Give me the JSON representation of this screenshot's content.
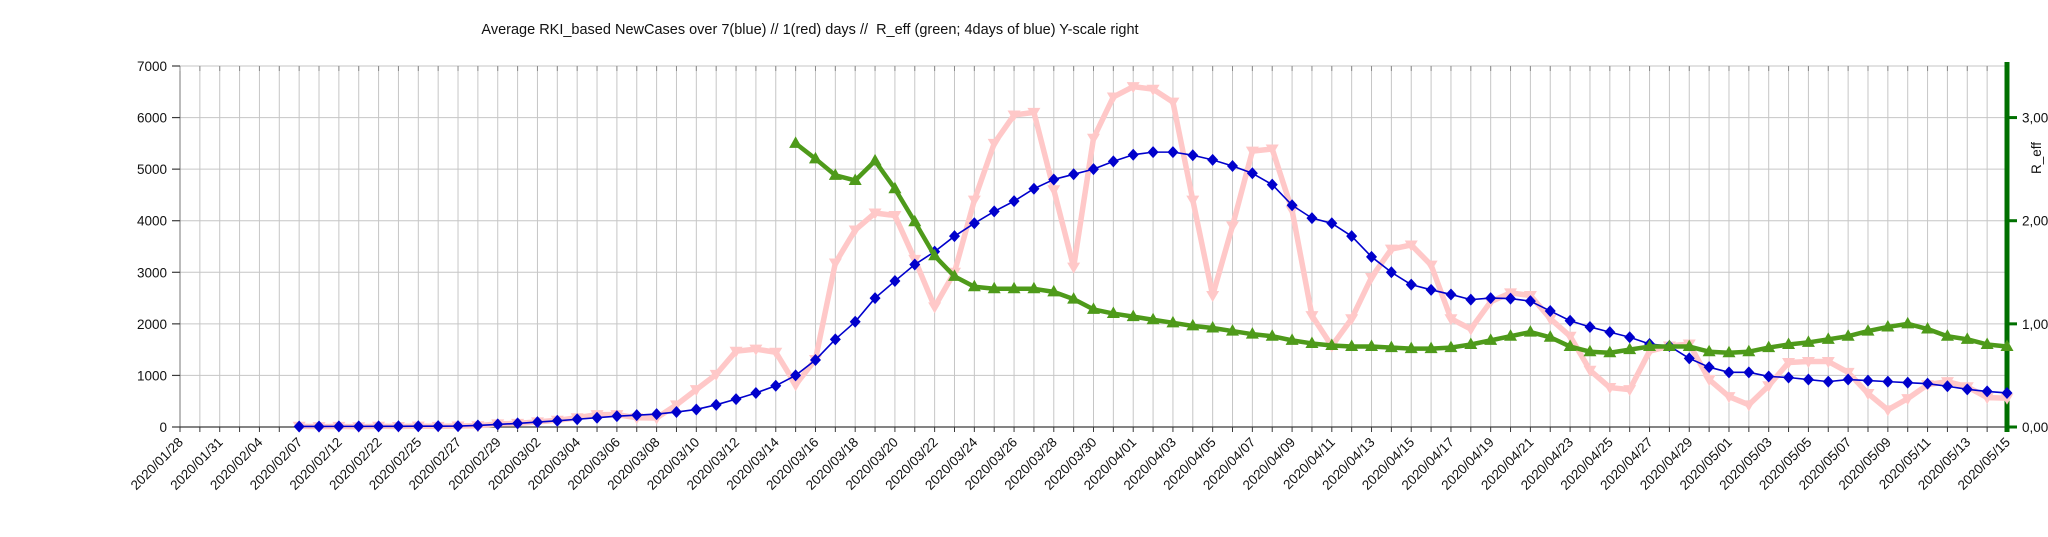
{
  "chart_data": {
    "type": "line",
    "title": "Average RKI_based NewCases over 7(blue) // 1(red) days //  R_eff (green; 4days of blue) Y-scale right",
    "grid": true,
    "legend": "none",
    "x_axis": {
      "slot_count": 93,
      "label_rotation_deg": -45,
      "tick_labels_on_even_slots": [
        "2020/01/28",
        "2020/01/31",
        "2020/02/04",
        "2020/02/07",
        "2020/02/12",
        "2020/02/22",
        "2020/02/25",
        "2020/02/27",
        "2020/02/29",
        "2020/03/02",
        "2020/03/04",
        "2020/03/06",
        "2020/03/08",
        "2020/03/10",
        "2020/03/12",
        "2020/03/14",
        "2020/03/16",
        "2020/03/18",
        "2020/03/20",
        "2020/03/22",
        "2020/03/24",
        "2020/03/26",
        "2020/03/28",
        "2020/03/30",
        "2020/04/01",
        "2020/04/03",
        "2020/04/05",
        "2020/04/07",
        "2020/04/09",
        "2020/04/11",
        "2020/04/13",
        "2020/04/15",
        "2020/04/17",
        "2020/04/19",
        "2020/04/21",
        "2020/04/23",
        "2020/04/25",
        "2020/04/27",
        "2020/04/29",
        "2020/05/01",
        "2020/05/03",
        "2020/05/05",
        "2020/05/07",
        "2020/05/09",
        "2020/05/11",
        "2020/05/13",
        "2020/05/15"
      ]
    },
    "y_axis_left": {
      "min": 0,
      "max": 7000,
      "tick_values": [
        0,
        1000,
        2000,
        3000,
        4000,
        5000,
        6000,
        7000
      ],
      "tick_labels": [
        "0",
        "1000",
        "2000",
        "3000",
        "4000",
        "5000",
        "6000",
        "7000"
      ]
    },
    "y_axis_right": {
      "title": "R_eff",
      "min": 0,
      "max": 3.5,
      "tick_values": [
        0,
        1,
        2,
        3
      ],
      "tick_labels": [
        "0,00",
        "1,00",
        "2,00",
        "3,00"
      ],
      "axis_color": "#007000",
      "left_units_per_reff": 2000
    },
    "series": [
      {
        "name": "NewCases average over 7 days (blue)",
        "axis": "left",
        "color": "#0000cc",
        "marker": "diamond",
        "z": 2,
        "values": [
          null,
          null,
          null,
          null,
          null,
          null,
          10,
          10,
          12,
          12,
          13,
          14,
          15,
          16,
          18,
          30,
          50,
          70,
          95,
          120,
          150,
          180,
          210,
          230,
          250,
          290,
          340,
          430,
          540,
          660,
          800,
          1000,
          1300,
          1700,
          2040,
          2500,
          2830,
          3150,
          3400,
          3700,
          3950,
          4180,
          4380,
          4620,
          4800,
          4900,
          5000,
          5150,
          5280,
          5330,
          5330,
          5270,
          5180,
          5060,
          4920,
          4700,
          4300,
          4050,
          3950,
          3700,
          3300,
          3000,
          2760,
          2660,
          2570,
          2470,
          2500,
          2490,
          2440,
          2250,
          2060,
          1940,
          1840,
          1740,
          1610,
          1570,
          1330,
          1160,
          1060,
          1060,
          980,
          960,
          920,
          880,
          920,
          900,
          880,
          860,
          840,
          790,
          730,
          690,
          660
        ]
      },
      {
        "name": "NewCases over 1 day (red)",
        "axis": "left",
        "color": "#ffc8c8",
        "marker": "triangle-down",
        "z": 1,
        "values": [
          null,
          null,
          null,
          null,
          null,
          null,
          15,
          8,
          12,
          6,
          15,
          10,
          18,
          12,
          20,
          25,
          60,
          70,
          100,
          130,
          180,
          240,
          240,
          180,
          175,
          430,
          725,
          1020,
          1470,
          1510,
          1450,
          820,
          1310,
          3180,
          3820,
          4150,
          4100,
          3250,
          2330,
          3000,
          4400,
          5500,
          6050,
          6100,
          4600,
          3100,
          5600,
          6400,
          6600,
          6550,
          6300,
          4400,
          2550,
          3900,
          5350,
          5390,
          4200,
          2160,
          1570,
          2100,
          2900,
          3450,
          3530,
          3140,
          2100,
          1900,
          2430,
          2600,
          2550,
          2100,
          1760,
          1100,
          765,
          725,
          1470,
          1570,
          1610,
          920,
          590,
          430,
          800,
          1250,
          1270,
          1270,
          1060,
          650,
          333,
          550,
          820,
          880,
          780,
          570,
          560
        ]
      },
      {
        "name": "R_eff (green; 4 days of blue, right scale)",
        "axis": "right",
        "color": "#4e9a1a",
        "marker": "triangle-up",
        "z": 3,
        "values": [
          null,
          null,
          null,
          null,
          null,
          null,
          null,
          null,
          null,
          null,
          null,
          null,
          null,
          null,
          null,
          null,
          null,
          null,
          null,
          null,
          null,
          null,
          null,
          null,
          null,
          null,
          null,
          null,
          null,
          null,
          null,
          2.75,
          2.6,
          2.44,
          2.39,
          2.58,
          2.31,
          1.99,
          1.66,
          1.46,
          1.36,
          1.34,
          1.34,
          1.34,
          1.31,
          1.24,
          1.14,
          1.1,
          1.07,
          1.04,
          1.01,
          0.98,
          0.96,
          0.93,
          0.9,
          0.88,
          0.84,
          0.81,
          0.79,
          0.78,
          0.78,
          0.77,
          0.76,
          0.76,
          0.77,
          0.8,
          0.84,
          0.88,
          0.92,
          0.87,
          0.78,
          0.73,
          0.72,
          0.75,
          0.78,
          0.78,
          0.78,
          0.73,
          0.72,
          0.73,
          0.77,
          0.8,
          0.82,
          0.85,
          0.88,
          0.93,
          0.97,
          1.0,
          0.95,
          0.88,
          0.85,
          0.8,
          0.78
        ]
      }
    ]
  }
}
